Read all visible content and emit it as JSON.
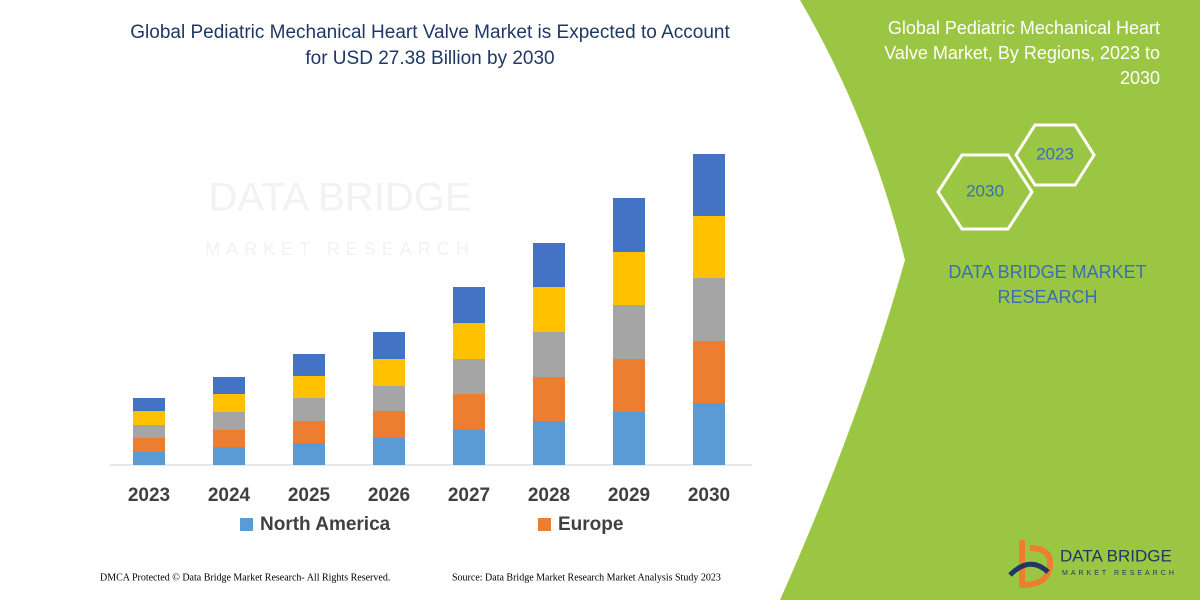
{
  "chart_data": {
    "type": "stacked_bar",
    "title": "Global Pediatric Mechanical Heart Valve Market is Expected to Account for USD 27.38 Billion by 2030",
    "categories": [
      "2023",
      "2024",
      "2025",
      "2026",
      "2027",
      "2028",
      "2029",
      "2030"
    ],
    "series": [
      {
        "name": "North America",
        "color": "#5b9bd5",
        "values": [
          13,
          18,
          22,
          27,
          35,
          44,
          53,
          62
        ]
      },
      {
        "name": "Europe",
        "color": "#ed7d31",
        "values": [
          14,
          17,
          22,
          27,
          36,
          44,
          53,
          62
        ]
      },
      {
        "color": "#a5a5a5",
        "values": [
          13,
          18,
          23,
          25,
          35,
          45,
          54,
          63
        ]
      },
      {
        "color": "#ffc000",
        "values": [
          14,
          18,
          22,
          27,
          36,
          45,
          53,
          62
        ]
      },
      {
        "color": "#4472c4",
        "values": [
          13,
          17,
          22,
          27,
          36,
          44,
          54,
          62
        ]
      }
    ]
  },
  "side_panel": {
    "title": "Global Pediatric Mechanical Heart Valve Market, By Regions, 2023 to 2030",
    "badges": [
      "2023",
      "2030"
    ],
    "brand": "DATA BRIDGE MARKET RESEARCH"
  },
  "logo": {
    "name": "DATA BRIDGE",
    "tagline": "MARKET RESEARCH"
  },
  "footer": {
    "copyright": "DMCA Protected © Data Bridge Market Research- All Rights Reserved.",
    "source": "Source: Data Bridge Market Research Market Analysis Study 2023"
  }
}
